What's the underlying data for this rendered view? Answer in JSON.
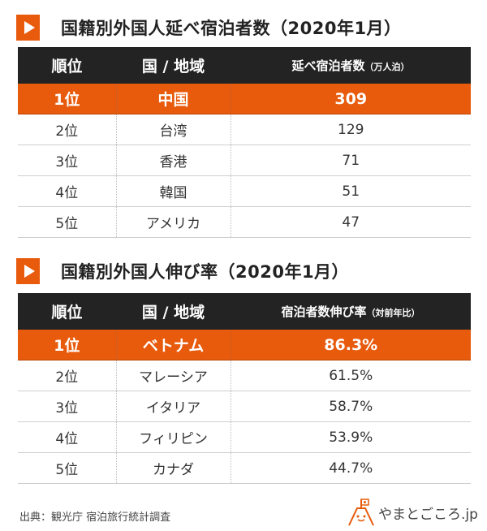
{
  "accent": "#e85a0c",
  "table1": {
    "title": "国籍別外国人延べ宿泊者数（2020年1月）",
    "headers": [
      "順位",
      "国 / 地域",
      "延べ宿泊者数"
    ],
    "header_unit": "（万人泊）",
    "rows": [
      [
        "1位",
        "中国",
        "309"
      ],
      [
        "2位",
        "台湾",
        "129"
      ],
      [
        "3位",
        "香港",
        "71"
      ],
      [
        "4位",
        "韓国",
        "51"
      ],
      [
        "5位",
        "アメリカ",
        "47"
      ]
    ]
  },
  "table2": {
    "title": "国籍別外国人伸び率（2020年1月）",
    "headers": [
      "順位",
      "国 / 地域",
      "宿泊者数伸び率"
    ],
    "header_unit": "（対前年比）",
    "rows": [
      [
        "1位",
        "ベトナム",
        "86.3%"
      ],
      [
        "2位",
        "マレーシア",
        "61.5%"
      ],
      [
        "3位",
        "イタリア",
        "58.7%"
      ],
      [
        "4位",
        "フィリピン",
        "53.9%"
      ],
      [
        "5位",
        "カナダ",
        "44.7%"
      ]
    ]
  },
  "footer": {
    "source": "出典：観光庁 宿泊旅行統計調査",
    "logo": "やまとごころ.jp"
  }
}
